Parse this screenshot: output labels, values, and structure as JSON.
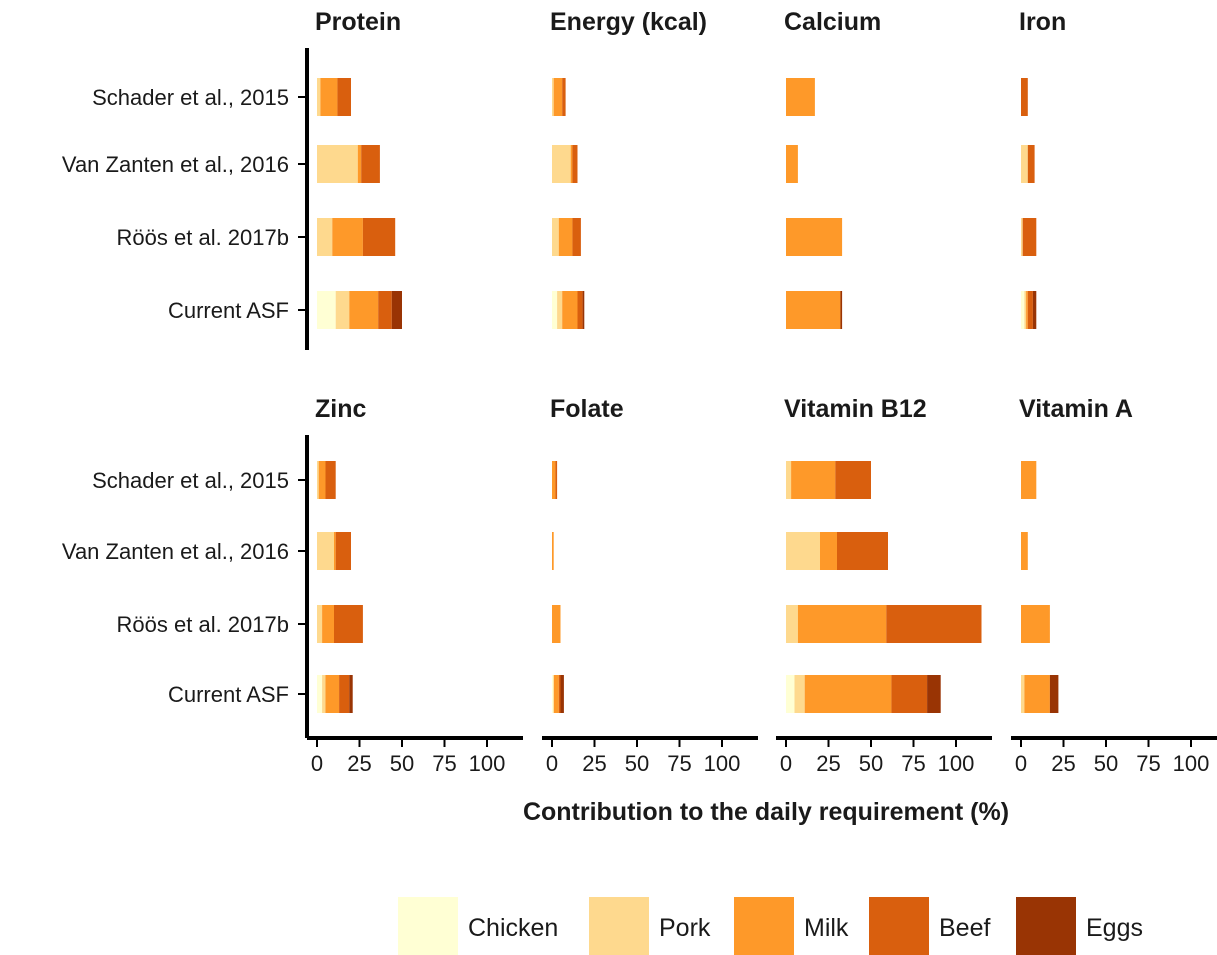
{
  "chart_data": {
    "type": "bar",
    "orientation": "horizontal",
    "stacked": true,
    "xlabel": "Contribution to the daily requirement (%)",
    "xlim": [
      0,
      120
    ],
    "xticks": [
      0,
      25,
      50,
      75,
      100
    ],
    "categories": [
      "Schader et al., 2015",
      "Van Zanten et al., 2016",
      "Röös et al. 2017b",
      "Current ASF"
    ],
    "stack_order": [
      "Chicken",
      "Pork",
      "Milk",
      "Beef",
      "Eggs"
    ],
    "legend": {
      "position": "bottom",
      "items": [
        {
          "name": "Chicken",
          "color": "#FFFFD4"
        },
        {
          "name": "Pork",
          "color": "#FED98E"
        },
        {
          "name": "Milk",
          "color": "#FE9929"
        },
        {
          "name": "Beef",
          "color": "#D95F0E"
        },
        {
          "name": "Eggs",
          "color": "#993404"
        }
      ]
    },
    "panels": [
      {
        "title": "Protein",
        "values": {
          "Schader et al., 2015": [
            0,
            2,
            10,
            8,
            0
          ],
          "Van Zanten et al., 2016": [
            0,
            24,
            2,
            11,
            0
          ],
          "Röös et al. 2017b": [
            0,
            9,
            18,
            19,
            0
          ],
          "Current ASF": [
            11,
            8,
            17,
            8,
            6
          ]
        }
      },
      {
        "title": "Energy (kcal)",
        "values": {
          "Schader et al., 2015": [
            0,
            1,
            5,
            2,
            0
          ],
          "Van Zanten et al., 2016": [
            0,
            11,
            1,
            3,
            0
          ],
          "Röös et al. 2017b": [
            0,
            4,
            8,
            5,
            0
          ],
          "Current ASF": [
            3,
            3,
            9,
            3,
            1
          ]
        }
      },
      {
        "title": "Calcium",
        "values": {
          "Schader et al., 2015": [
            0,
            0,
            17,
            0,
            0
          ],
          "Van Zanten et al., 2016": [
            0,
            0,
            7,
            0,
            0
          ],
          "Röös et al. 2017b": [
            0,
            0,
            33,
            0,
            0
          ],
          "Current ASF": [
            0,
            0,
            32,
            0,
            1
          ]
        }
      },
      {
        "title": "Iron",
        "values": {
          "Schader et al., 2015": [
            0,
            0,
            0,
            4,
            0
          ],
          "Van Zanten et al., 2016": [
            0,
            4,
            0,
            4,
            0
          ],
          "Röös et al. 2017b": [
            0,
            1,
            0,
            8,
            0
          ],
          "Current ASF": [
            2,
            1,
            1,
            3,
            2
          ]
        }
      },
      {
        "title": "Zinc",
        "values": {
          "Schader et al., 2015": [
            0,
            1,
            4,
            6,
            0
          ],
          "Van Zanten et al., 2016": [
            0,
            10,
            1,
            9,
            0
          ],
          "Röös et al. 2017b": [
            0,
            3,
            7,
            17,
            0
          ],
          "Current ASF": [
            3,
            2,
            8,
            6,
            2
          ]
        }
      },
      {
        "title": "Folate",
        "values": {
          "Schader et al., 2015": [
            0,
            0,
            2,
            1,
            0
          ],
          "Van Zanten et al., 2016": [
            0,
            0,
            1,
            0,
            0
          ],
          "Röös et al. 2017b": [
            0,
            0,
            5,
            0,
            0
          ],
          "Current ASF": [
            1,
            0,
            3,
            1,
            2
          ]
        }
      },
      {
        "title": "Vitamin B12",
        "values": {
          "Schader et al., 2015": [
            0,
            3,
            26,
            21,
            0
          ],
          "Van Zanten et al., 2016": [
            0,
            20,
            10,
            30,
            0
          ],
          "Röös et al. 2017b": [
            0,
            7,
            52,
            56,
            0
          ],
          "Current ASF": [
            5,
            6,
            51,
            21,
            8
          ]
        }
      },
      {
        "title": "Vitamin A",
        "values": {
          "Schader et al., 2015": [
            0,
            0,
            9,
            0,
            0
          ],
          "Van Zanten et al., 2016": [
            0,
            0,
            4,
            0,
            0
          ],
          "Röös et al. 2017b": [
            0,
            0,
            17,
            0,
            0
          ],
          "Current ASF": [
            0,
            2,
            15,
            0,
            5
          ]
        }
      }
    ]
  }
}
